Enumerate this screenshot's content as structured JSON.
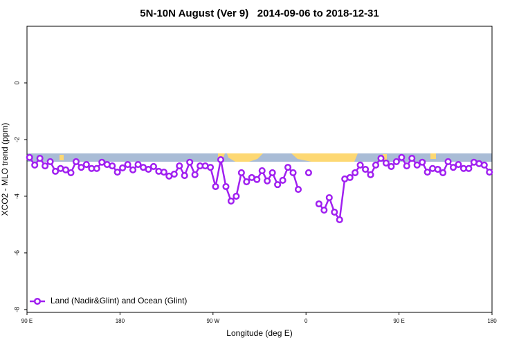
{
  "chart_data": {
    "type": "line",
    "title": "5N-10N August (Ver 9)   2014-09-06 to 2018-12-31",
    "x_label": "Longitude (deg E)",
    "y_label": "XCO2 - MLO trend (ppm)",
    "xlim": [
      90,
      540
    ],
    "xticks": [
      {
        "value": 90,
        "label": "90 E"
      },
      180,
      {
        "value": 270,
        "label": "90 W"
      },
      {
        "value": 360,
        "label": "0"
      },
      {
        "value": 450,
        "label": "90 E"
      },
      {
        "value": 540,
        "label": "180"
      }
    ],
    "ylim": [
      -8.1,
      2
    ],
    "yticks": [
      0,
      -2,
      -4,
      -6,
      -8
    ],
    "legend": "lower left",
    "x": [
      92.5,
      97.5,
      102.5,
      107.5,
      112.5,
      117.5,
      122.5,
      127.5,
      132.5,
      137.5,
      142.5,
      147.5,
      152.5,
      157.5,
      162.5,
      167.5,
      172.5,
      177.5,
      182.5,
      187.5,
      192.5,
      197.5,
      202.5,
      207.5,
      212.5,
      217.5,
      222.5,
      227.5,
      232.5,
      237.5,
      242.5,
      247.5,
      252.5,
      257.5,
      262.5,
      267.5,
      272.5,
      277.5,
      282.5,
      287.5,
      292.5,
      297.5,
      302.5,
      307.5,
      312.5,
      317.5,
      322.5,
      327.5,
      332.5,
      337.5,
      342.5,
      347.5,
      352.5,
      357.5,
      362.5,
      367.5,
      372.5,
      377.5,
      382.5,
      387.5,
      392.5,
      397.5,
      402.5,
      407.5,
      412.5,
      417.5,
      422.5,
      427.5,
      432.5,
      437.5,
      442.5,
      447.5,
      452.5,
      457.5,
      462.5,
      467.5,
      472.5,
      477.5,
      482.5,
      487.5,
      492.5,
      497.5,
      502.5,
      507.5,
      512.5,
      517.5,
      522.5,
      527.5,
      532.5,
      537.5
    ],
    "series": [
      {
        "name": "Land (Nadir&Glint) and Ocean (Glint)",
        "color": "#a020f0",
        "values": [
          -2.63,
          -2.9,
          -2.66,
          -2.93,
          -2.78,
          -3.12,
          -3.02,
          -3.07,
          -3.17,
          -2.78,
          -2.98,
          -2.88,
          -3.02,
          -3.02,
          -2.8,
          -2.88,
          -2.93,
          -3.15,
          -3.0,
          -2.88,
          -3.07,
          -2.88,
          -2.98,
          -3.05,
          -2.95,
          -3.12,
          -3.15,
          -3.29,
          -3.22,
          -2.93,
          -3.27,
          -2.8,
          -3.24,
          -2.93,
          -2.93,
          -2.98,
          -3.66,
          -2.71,
          -3.66,
          -4.17,
          -4.0,
          -3.17,
          -3.49,
          -3.34,
          -3.41,
          -3.1,
          -3.46,
          -3.17,
          -3.59,
          -3.44,
          -2.98,
          -3.17,
          -3.76,
          null,
          -3.17,
          null,
          -4.27,
          -4.49,
          -4.05,
          -4.56,
          -4.83,
          -3.39,
          -3.34,
          -3.17,
          -2.9,
          -3.05,
          -3.24,
          -2.9,
          -2.66,
          -2.83,
          -2.95,
          -2.78,
          -2.63,
          -2.93,
          -2.66,
          -2.9,
          -2.8,
          -3.15,
          -3.02,
          -3.05,
          -3.17,
          -2.78,
          -2.98,
          -2.88,
          -3.02,
          -3.02,
          -2.8,
          -2.85,
          -2.9,
          -3.15
        ]
      }
    ]
  }
}
